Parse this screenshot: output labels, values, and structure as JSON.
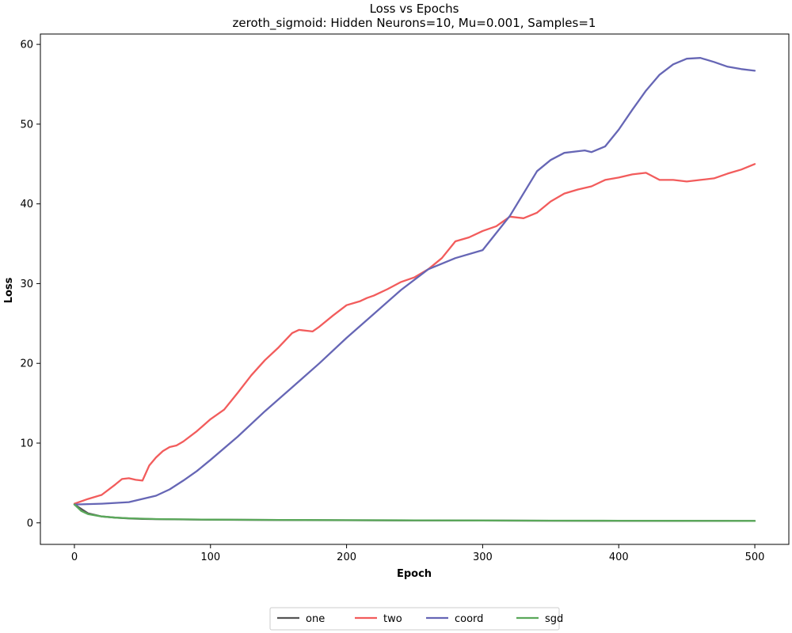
{
  "chart_data": {
    "type": "line",
    "title": "Loss vs Epochs",
    "subtitle": "zeroth_sigmoid: Hidden Neurons=10, Mu=0.001, Samples=1",
    "xlabel": "Epoch",
    "ylabel": "Loss",
    "xlim": [
      -25,
      525
    ],
    "ylim": [
      -2.7,
      61.3
    ],
    "xticks": [
      0,
      100,
      200,
      300,
      400,
      500
    ],
    "yticks": [
      0,
      10,
      20,
      30,
      40,
      50,
      60
    ],
    "grid": false,
    "legend_position": "bottom-center",
    "series": [
      {
        "name": "one",
        "color": "#555555",
        "x": [
          0,
          10,
          20,
          30,
          40,
          50,
          60,
          80,
          100,
          150,
          200,
          250,
          300,
          350,
          400,
          450,
          500
        ],
        "y": [
          2.3,
          1.2,
          0.8,
          0.65,
          0.55,
          0.5,
          0.47,
          0.43,
          0.4,
          0.36,
          0.33,
          0.31,
          0.29,
          0.27,
          0.26,
          0.25,
          0.24
        ]
      },
      {
        "name": "two",
        "color": "#f25c5c",
        "x": [
          0,
          10,
          20,
          30,
          35,
          40,
          45,
          50,
          55,
          60,
          65,
          70,
          75,
          80,
          90,
          100,
          110,
          120,
          130,
          140,
          150,
          160,
          165,
          170,
          175,
          180,
          190,
          200,
          210,
          215,
          220,
          230,
          240,
          250,
          260,
          270,
          280,
          290,
          300,
          310,
          320,
          330,
          340,
          350,
          360,
          370,
          380,
          390,
          400,
          410,
          420,
          430,
          440,
          450,
          460,
          470,
          480,
          490,
          500
        ],
        "y": [
          2.4,
          3.0,
          3.5,
          4.8,
          5.5,
          5.6,
          5.4,
          5.3,
          7.2,
          8.2,
          9.0,
          9.5,
          9.7,
          10.2,
          11.5,
          13.0,
          14.2,
          16.3,
          18.5,
          20.4,
          22.0,
          23.8,
          24.2,
          24.1,
          24.0,
          24.6,
          26.0,
          27.3,
          27.8,
          28.2,
          28.5,
          29.3,
          30.2,
          30.8,
          31.8,
          33.2,
          35.3,
          35.8,
          36.6,
          37.2,
          38.4,
          38.2,
          38.9,
          40.3,
          41.3,
          41.8,
          42.2,
          43.0,
          43.3,
          43.7,
          43.9,
          43.0,
          43.0,
          42.8,
          43.0,
          43.2,
          43.8,
          44.3,
          45.0
        ]
      },
      {
        "name": "coord",
        "color": "#6666b5",
        "x": [
          0,
          20,
          40,
          60,
          70,
          80,
          90,
          100,
          120,
          140,
          160,
          180,
          200,
          220,
          240,
          260,
          280,
          300,
          320,
          340,
          350,
          360,
          370,
          375,
          380,
          390,
          400,
          410,
          420,
          430,
          440,
          450,
          460,
          470,
          480,
          490,
          500
        ],
        "y": [
          2.3,
          2.4,
          2.6,
          3.4,
          4.2,
          5.3,
          6.5,
          7.9,
          10.8,
          14.0,
          17.0,
          20.0,
          23.2,
          26.2,
          29.2,
          31.8,
          33.2,
          34.2,
          38.5,
          44.1,
          45.5,
          46.4,
          46.6,
          46.7,
          46.5,
          47.2,
          49.3,
          51.8,
          54.2,
          56.2,
          57.5,
          58.2,
          58.3,
          57.8,
          57.2,
          56.9,
          56.7
        ]
      },
      {
        "name": "sgd",
        "color": "#5aa85a",
        "x": [
          0,
          5,
          10,
          20,
          30,
          40,
          50,
          60,
          80,
          100,
          150,
          200,
          250,
          300,
          350,
          400,
          450,
          500
        ],
        "y": [
          2.3,
          1.5,
          1.1,
          0.8,
          0.65,
          0.57,
          0.52,
          0.48,
          0.44,
          0.41,
          0.37,
          0.34,
          0.32,
          0.3,
          0.28,
          0.27,
          0.26,
          0.25
        ]
      }
    ]
  }
}
